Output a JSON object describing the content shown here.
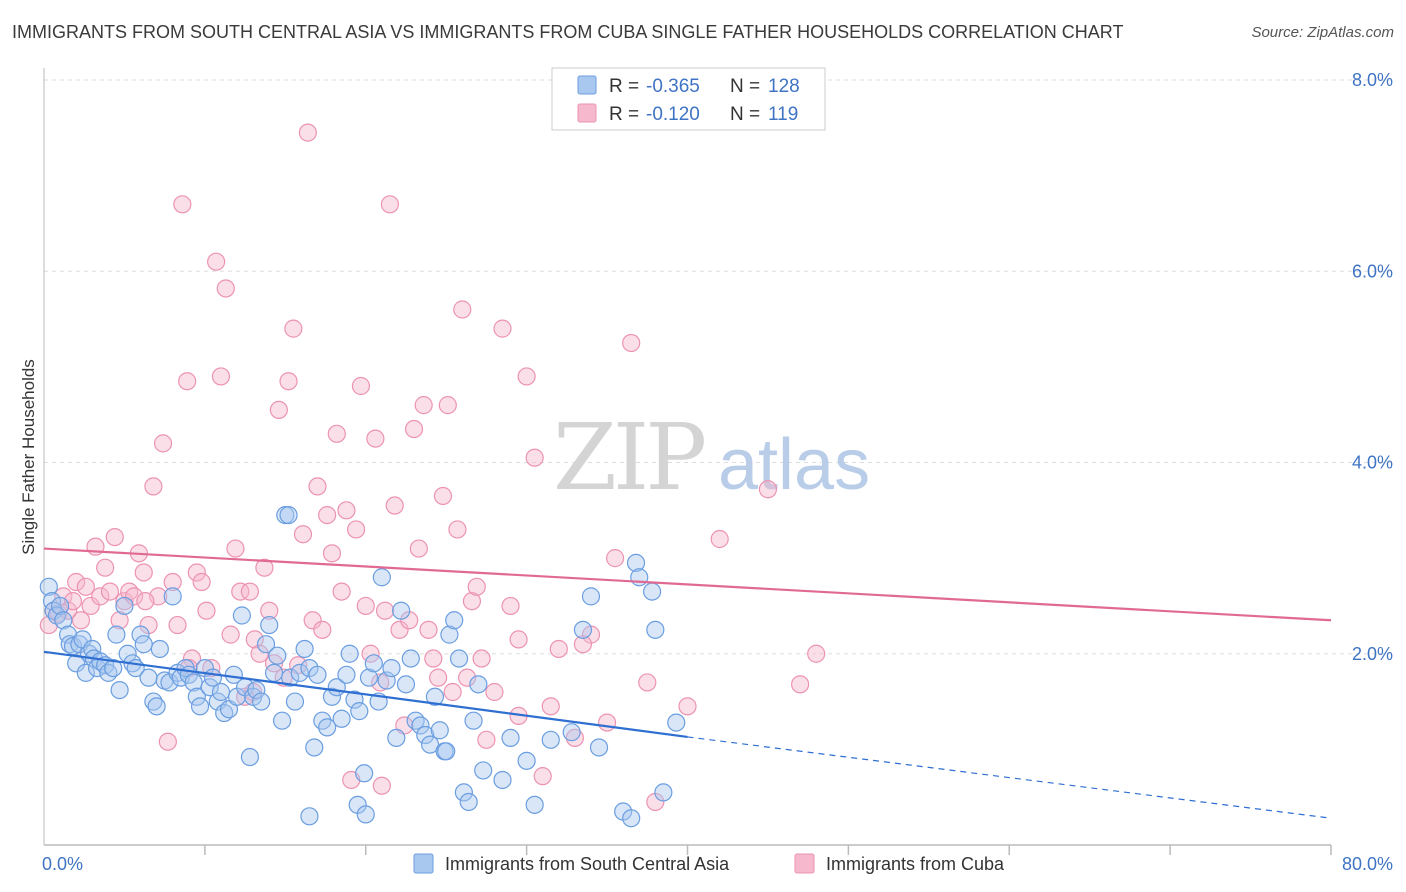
{
  "title": "IMMIGRANTS FROM SOUTH CENTRAL ASIA VS IMMIGRANTS FROM CUBA SINGLE FATHER HOUSEHOLDS CORRELATION CHART",
  "source": "Source: ZipAtlas.com",
  "watermark": {
    "zip": "ZIP",
    "atlas": "atlas"
  },
  "legend_box": {
    "rows": [
      {
        "r_label": "R =",
        "r_value": "-0.365",
        "n_label": "N =",
        "n_value": "128"
      },
      {
        "r_label": "R =",
        "r_value": "-0.120",
        "n_label": "N =",
        "n_value": "119"
      }
    ]
  },
  "bottom_legend": {
    "items": [
      {
        "label": "Immigrants from South Central Asia"
      },
      {
        "label": "Immigrants from Cuba"
      }
    ]
  },
  "colors": {
    "blue": "#2f6fd1",
    "blue_fill": "#a9c8f0",
    "blue_stroke": "#6b9ee0",
    "pink": "#e06a94",
    "pink_fill": "#f6b8cc",
    "pink_stroke": "#ec93b2",
    "grid": "#dddddd",
    "tick": "#3f74c4"
  },
  "chart_data": {
    "type": "scatter",
    "title": "IMMIGRANTS FROM SOUTH CENTRAL ASIA VS IMMIGRANTS FROM CUBA SINGLE FATHER HOUSEHOLDS CORRELATION CHART",
    "xlabel": "",
    "ylabel": "Single Father Households",
    "xlim": [
      0,
      80
    ],
    "ylim": [
      0,
      8
    ],
    "x_tick_labels": [
      "0.0%",
      "80.0%"
    ],
    "y_ticks": [
      2,
      4,
      6,
      8
    ],
    "y_tick_labels": [
      "2.0%",
      "4.0%",
      "6.0%",
      "8.0%"
    ],
    "grid": true,
    "legend_position": "top-center",
    "series": [
      {
        "name": "Immigrants from South Central Asia",
        "r": -0.365,
        "n": 128,
        "trend": {
          "x0": 0,
          "y0": 2.02,
          "x1": 40,
          "y1": 1.13,
          "x_dashed_end": 80,
          "y_dashed_end": 0.28
        },
        "points": [
          [
            0.3,
            2.7
          ],
          [
            0.5,
            2.55
          ],
          [
            0.6,
            2.45
          ],
          [
            0.8,
            2.4
          ],
          [
            1.0,
            2.5
          ],
          [
            1.2,
            2.35
          ],
          [
            1.5,
            2.2
          ],
          [
            1.6,
            2.1
          ],
          [
            1.8,
            2.08
          ],
          [
            2.0,
            1.9
          ],
          [
            2.2,
            2.1
          ],
          [
            2.4,
            2.15
          ],
          [
            2.6,
            1.8
          ],
          [
            2.8,
            2.0
          ],
          [
            3.0,
            2.05
          ],
          [
            3.1,
            1.95
          ],
          [
            3.3,
            1.85
          ],
          [
            3.5,
            1.92
          ],
          [
            3.8,
            1.88
          ],
          [
            4.0,
            1.8
          ],
          [
            4.3,
            1.85
          ],
          [
            4.5,
            2.2
          ],
          [
            4.7,
            1.62
          ],
          [
            5.0,
            2.5
          ],
          [
            5.2,
            2.0
          ],
          [
            5.5,
            1.9
          ],
          [
            5.7,
            1.85
          ],
          [
            6.0,
            2.2
          ],
          [
            6.2,
            2.1
          ],
          [
            6.5,
            1.75
          ],
          [
            6.8,
            1.5
          ],
          [
            7.0,
            1.45
          ],
          [
            7.2,
            2.05
          ],
          [
            7.5,
            1.72
          ],
          [
            7.8,
            1.7
          ],
          [
            8.0,
            2.6
          ],
          [
            8.3,
            1.8
          ],
          [
            8.5,
            1.75
          ],
          [
            8.8,
            1.85
          ],
          [
            9.0,
            1.78
          ],
          [
            9.3,
            1.7
          ],
          [
            9.5,
            1.55
          ],
          [
            9.7,
            1.45
          ],
          [
            10.0,
            1.85
          ],
          [
            10.3,
            1.65
          ],
          [
            10.5,
            1.75
          ],
          [
            10.8,
            1.5
          ],
          [
            11.0,
            1.6
          ],
          [
            11.2,
            1.38
          ],
          [
            11.5,
            1.42
          ],
          [
            11.8,
            1.78
          ],
          [
            12.0,
            1.55
          ],
          [
            12.3,
            2.4
          ],
          [
            12.5,
            1.65
          ],
          [
            12.8,
            0.92
          ],
          [
            13.0,
            1.55
          ],
          [
            13.2,
            1.62
          ],
          [
            13.5,
            1.5
          ],
          [
            13.8,
            2.1
          ],
          [
            14.0,
            2.3
          ],
          [
            14.3,
            1.8
          ],
          [
            14.5,
            1.98
          ],
          [
            14.8,
            1.3
          ],
          [
            15.0,
            3.45
          ],
          [
            15.3,
            1.75
          ],
          [
            15.6,
            1.5
          ],
          [
            15.9,
            1.8
          ],
          [
            16.2,
            2.05
          ],
          [
            16.5,
            1.85
          ],
          [
            16.8,
            1.02
          ],
          [
            17.0,
            1.78
          ],
          [
            17.3,
            1.3
          ],
          [
            17.6,
            1.23
          ],
          [
            17.9,
            1.55
          ],
          [
            18.2,
            1.65
          ],
          [
            18.5,
            1.32
          ],
          [
            18.8,
            1.78
          ],
          [
            19.0,
            2.0
          ],
          [
            19.3,
            1.52
          ],
          [
            19.6,
            1.4
          ],
          [
            19.9,
            0.75
          ],
          [
            20.2,
            1.75
          ],
          [
            20.5,
            1.9
          ],
          [
            20.8,
            1.5
          ],
          [
            21.0,
            2.8
          ],
          [
            21.3,
            1.72
          ],
          [
            21.6,
            1.85
          ],
          [
            21.9,
            1.12
          ],
          [
            22.2,
            2.45
          ],
          [
            22.5,
            1.68
          ],
          [
            22.8,
            1.95
          ],
          [
            23.1,
            1.3
          ],
          [
            23.4,
            1.25
          ],
          [
            23.7,
            1.15
          ],
          [
            24.0,
            1.05
          ],
          [
            24.3,
            1.55
          ],
          [
            24.6,
            1.2
          ],
          [
            24.9,
            0.98
          ],
          [
            25.2,
            2.2
          ],
          [
            25.5,
            2.35
          ],
          [
            25.8,
            1.95
          ],
          [
            26.1,
            0.55
          ],
          [
            26.4,
            0.45
          ],
          [
            26.7,
            1.3
          ],
          [
            27.0,
            1.68
          ],
          [
            27.3,
            0.78
          ],
          [
            28.5,
            0.68
          ],
          [
            29.0,
            1.12
          ],
          [
            30.0,
            0.88
          ],
          [
            30.5,
            0.42
          ],
          [
            31.5,
            1.1
          ],
          [
            32.8,
            1.18
          ],
          [
            33.5,
            2.25
          ],
          [
            34.0,
            2.6
          ],
          [
            34.5,
            1.02
          ],
          [
            36.0,
            0.35
          ],
          [
            36.5,
            0.28
          ],
          [
            36.8,
            2.95
          ],
          [
            37.0,
            2.8
          ],
          [
            37.8,
            2.65
          ],
          [
            38.0,
            2.25
          ],
          [
            38.5,
            0.55
          ],
          [
            39.3,
            1.28
          ],
          [
            15.2,
            3.45
          ],
          [
            16.5,
            0.3
          ],
          [
            19.5,
            0.42
          ],
          [
            20.0,
            0.32
          ],
          [
            25.0,
            0.98
          ]
        ]
      },
      {
        "name": "Immigrants from Cuba",
        "r": -0.12,
        "n": 119,
        "trend": {
          "x0": 0,
          "y0": 3.1,
          "x1": 80,
          "y1": 2.35
        },
        "points": [
          [
            0.3,
            2.3
          ],
          [
            0.6,
            2.45
          ],
          [
            0.9,
            2.42
          ],
          [
            1.2,
            2.6
          ],
          [
            1.5,
            2.45
          ],
          [
            1.8,
            2.55
          ],
          [
            2.0,
            2.75
          ],
          [
            2.3,
            2.35
          ],
          [
            2.6,
            2.7
          ],
          [
            2.9,
            2.5
          ],
          [
            3.2,
            3.12
          ],
          [
            3.5,
            2.6
          ],
          [
            3.8,
            2.9
          ],
          [
            4.1,
            2.65
          ],
          [
            4.4,
            3.22
          ],
          [
            4.7,
            2.35
          ],
          [
            5.0,
            2.55
          ],
          [
            5.3,
            2.65
          ],
          [
            5.6,
            2.6
          ],
          [
            5.9,
            3.05
          ],
          [
            6.2,
            2.85
          ],
          [
            6.5,
            2.3
          ],
          [
            6.8,
            3.75
          ],
          [
            7.1,
            2.6
          ],
          [
            7.4,
            4.2
          ],
          [
            7.7,
            1.08
          ],
          [
            8.0,
            2.75
          ],
          [
            8.3,
            2.3
          ],
          [
            8.6,
            6.7
          ],
          [
            8.9,
            4.85
          ],
          [
            9.2,
            1.95
          ],
          [
            9.5,
            2.85
          ],
          [
            9.8,
            2.75
          ],
          [
            10.1,
            2.45
          ],
          [
            10.4,
            1.85
          ],
          [
            10.7,
            6.1
          ],
          [
            11.0,
            4.9
          ],
          [
            11.3,
            5.82
          ],
          [
            11.6,
            2.2
          ],
          [
            11.9,
            3.1
          ],
          [
            12.2,
            2.65
          ],
          [
            12.5,
            1.55
          ],
          [
            12.8,
            2.65
          ],
          [
            13.1,
            2.15
          ],
          [
            13.4,
            2.0
          ],
          [
            13.7,
            2.9
          ],
          [
            14.0,
            2.45
          ],
          [
            14.3,
            1.9
          ],
          [
            14.6,
            4.55
          ],
          [
            14.9,
            1.75
          ],
          [
            15.2,
            4.85
          ],
          [
            15.5,
            5.4
          ],
          [
            15.8,
            1.88
          ],
          [
            16.1,
            3.25
          ],
          [
            16.4,
            7.45
          ],
          [
            16.7,
            2.35
          ],
          [
            17.0,
            3.75
          ],
          [
            17.3,
            2.25
          ],
          [
            17.6,
            3.45
          ],
          [
            17.9,
            3.05
          ],
          [
            18.2,
            4.3
          ],
          [
            18.5,
            2.65
          ],
          [
            18.8,
            3.5
          ],
          [
            19.1,
            0.68
          ],
          [
            19.4,
            3.3
          ],
          [
            19.7,
            4.8
          ],
          [
            20.0,
            2.5
          ],
          [
            20.3,
            2.0
          ],
          [
            20.6,
            4.25
          ],
          [
            20.9,
            1.7
          ],
          [
            21.2,
            2.45
          ],
          [
            21.5,
            6.7
          ],
          [
            21.8,
            3.55
          ],
          [
            22.1,
            2.25
          ],
          [
            22.4,
            1.25
          ],
          [
            22.7,
            2.35
          ],
          [
            23.0,
            4.35
          ],
          [
            23.3,
            3.1
          ],
          [
            23.6,
            4.6
          ],
          [
            23.9,
            2.25
          ],
          [
            24.2,
            1.95
          ],
          [
            24.5,
            1.75
          ],
          [
            24.8,
            3.65
          ],
          [
            25.1,
            4.6
          ],
          [
            25.4,
            1.6
          ],
          [
            25.7,
            3.3
          ],
          [
            26.0,
            5.6
          ],
          [
            26.3,
            1.75
          ],
          [
            26.6,
            2.55
          ],
          [
            26.9,
            2.7
          ],
          [
            27.2,
            1.95
          ],
          [
            27.5,
            1.1
          ],
          [
            28.0,
            1.6
          ],
          [
            28.5,
            5.4
          ],
          [
            29.0,
            2.5
          ],
          [
            29.5,
            2.15
          ],
          [
            30.0,
            4.9
          ],
          [
            30.5,
            4.05
          ],
          [
            31.0,
            0.72
          ],
          [
            32.0,
            2.05
          ],
          [
            33.0,
            1.12
          ],
          [
            34.0,
            2.2
          ],
          [
            35.0,
            1.28
          ],
          [
            35.5,
            3.0
          ],
          [
            36.5,
            5.25
          ],
          [
            37.5,
            1.7
          ],
          [
            38.0,
            0.45
          ],
          [
            40.0,
            1.45
          ],
          [
            42.0,
            3.2
          ],
          [
            45.0,
            3.72
          ],
          [
            47.0,
            1.68
          ],
          [
            48.0,
            2.0
          ],
          [
            6.3,
            2.55
          ],
          [
            9.0,
            1.85
          ],
          [
            13.0,
            1.6
          ],
          [
            21.0,
            0.62
          ],
          [
            29.5,
            1.35
          ],
          [
            31.5,
            1.45
          ],
          [
            33.5,
            2.1
          ]
        ]
      }
    ]
  }
}
